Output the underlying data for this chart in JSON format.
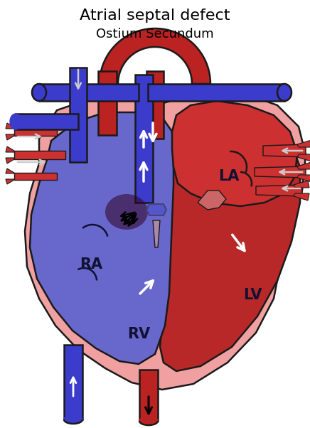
{
  "title": "Atrial septal defect",
  "subtitle": "Ostium Secundum",
  "title_fontsize": 16,
  "subtitle_fontsize": 13,
  "bg_color": "#ffffff",
  "blue_dark": "#3b3bcc",
  "blue_med": "#5555cc",
  "blue_light": "#7070dd",
  "blue_rv": "#6868cc",
  "red_dark": "#bb2222",
  "red_med": "#cc3030",
  "red_lv": "#b82828",
  "pink_light": "#f0a0a0",
  "pink_bg": "#f5b0b0",
  "outline": "#1a1a1a",
  "label_RA": "RA",
  "label_LA": "LA",
  "label_RV": "RV",
  "label_LV": "LV",
  "label_fontsize": 15
}
